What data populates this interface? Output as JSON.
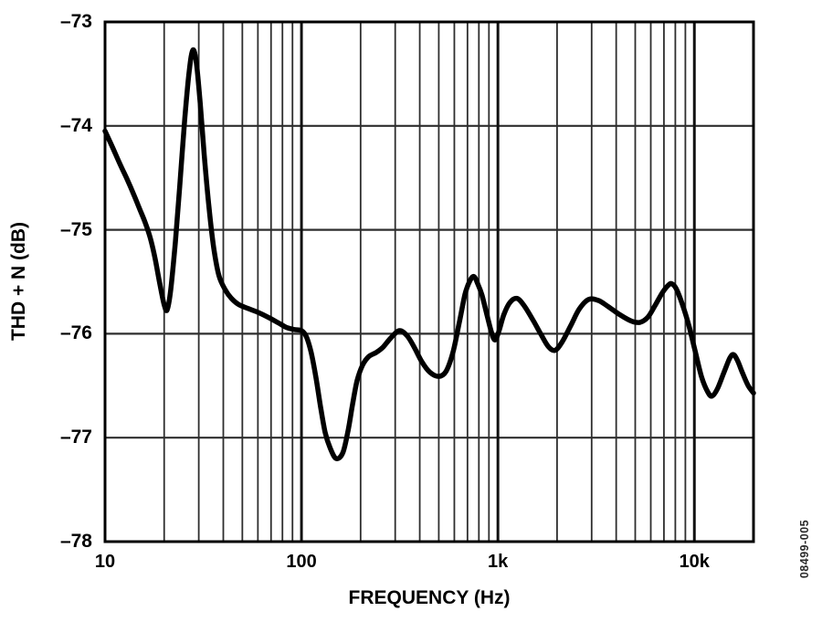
{
  "figure": {
    "note": "08499-005",
    "background": "#ffffff"
  },
  "chart_data": {
    "type": "line",
    "title": "",
    "xlabel": "FREQUENCY (Hz)",
    "ylabel": "THD + N (dB)",
    "x_scale": "log",
    "xlim": [
      10,
      20000
    ],
    "ylim": [
      -78,
      -73
    ],
    "grid": true,
    "legend": "none",
    "colors": {
      "curve": "#000000",
      "grid_minor": "#2e2e2e",
      "grid_major": "#111111",
      "frame": "#000000",
      "text": "#000000"
    },
    "x_ticks": [
      {
        "value": 10,
        "label": "10"
      },
      {
        "value": 100,
        "label": "100"
      },
      {
        "value": 1000,
        "label": "1k"
      },
      {
        "value": 10000,
        "label": "10k"
      }
    ],
    "y_ticks": [
      {
        "value": -73,
        "label": "–73"
      },
      {
        "value": -74,
        "label": "–74"
      },
      {
        "value": -75,
        "label": "–75"
      },
      {
        "value": -76,
        "label": "–76"
      },
      {
        "value": -77,
        "label": "–77"
      },
      {
        "value": -78,
        "label": "–78"
      }
    ],
    "series": [
      {
        "name": "THD + N",
        "points": [
          [
            10,
            -74.05
          ],
          [
            11,
            -74.22
          ],
          [
            12,
            -74.38
          ],
          [
            13,
            -74.52
          ],
          [
            14,
            -74.66
          ],
          [
            15,
            -74.8
          ],
          [
            16,
            -74.93
          ],
          [
            17,
            -75.08
          ],
          [
            18,
            -75.28
          ],
          [
            19,
            -75.52
          ],
          [
            20,
            -75.72
          ],
          [
            20.7,
            -75.77
          ],
          [
            21.6,
            -75.58
          ],
          [
            22.8,
            -75.12
          ],
          [
            24,
            -74.58
          ],
          [
            25.5,
            -73.92
          ],
          [
            26.8,
            -73.48
          ],
          [
            28,
            -73.27
          ],
          [
            29.2,
            -73.4
          ],
          [
            30.5,
            -73.78
          ],
          [
            32,
            -74.28
          ],
          [
            33.8,
            -74.78
          ],
          [
            35.8,
            -75.18
          ],
          [
            38,
            -75.44
          ],
          [
            41,
            -75.58
          ],
          [
            44,
            -75.66
          ],
          [
            48,
            -75.72
          ],
          [
            54,
            -75.76
          ],
          [
            61,
            -75.8
          ],
          [
            69,
            -75.85
          ],
          [
            77,
            -75.9
          ],
          [
            84,
            -75.94
          ],
          [
            92,
            -75.96
          ],
          [
            100,
            -75.97
          ],
          [
            106,
            -76.03
          ],
          [
            112,
            -76.18
          ],
          [
            118,
            -76.4
          ],
          [
            125,
            -76.7
          ],
          [
            132,
            -76.95
          ],
          [
            140,
            -77.1
          ],
          [
            150,
            -77.2
          ],
          [
            162,
            -77.15
          ],
          [
            172,
            -76.95
          ],
          [
            182,
            -76.68
          ],
          [
            192,
            -76.45
          ],
          [
            205,
            -76.3
          ],
          [
            220,
            -76.22
          ],
          [
            240,
            -76.18
          ],
          [
            260,
            -76.13
          ],
          [
            285,
            -76.04
          ],
          [
            315,
            -75.97
          ],
          [
            345,
            -76.02
          ],
          [
            375,
            -76.13
          ],
          [
            410,
            -76.27
          ],
          [
            450,
            -76.37
          ],
          [
            500,
            -76.41
          ],
          [
            545,
            -76.36
          ],
          [
            590,
            -76.18
          ],
          [
            635,
            -75.9
          ],
          [
            680,
            -75.62
          ],
          [
            720,
            -75.49
          ],
          [
            755,
            -75.45
          ],
          [
            790,
            -75.52
          ],
          [
            830,
            -75.63
          ],
          [
            880,
            -75.82
          ],
          [
            925,
            -75.98
          ],
          [
            965,
            -76.06
          ],
          [
            1010,
            -75.98
          ],
          [
            1070,
            -75.82
          ],
          [
            1150,
            -75.7
          ],
          [
            1250,
            -75.66
          ],
          [
            1360,
            -75.73
          ],
          [
            1500,
            -75.86
          ],
          [
            1650,
            -76.0
          ],
          [
            1800,
            -76.12
          ],
          [
            1950,
            -76.16
          ],
          [
            2120,
            -76.08
          ],
          [
            2350,
            -75.92
          ],
          [
            2600,
            -75.76
          ],
          [
            2900,
            -75.67
          ],
          [
            3250,
            -75.68
          ],
          [
            3650,
            -75.74
          ],
          [
            4200,
            -75.82
          ],
          [
            4800,
            -75.88
          ],
          [
            5300,
            -75.89
          ],
          [
            5800,
            -75.84
          ],
          [
            6300,
            -75.73
          ],
          [
            6900,
            -75.6
          ],
          [
            7400,
            -75.53
          ],
          [
            7700,
            -75.52
          ],
          [
            8100,
            -75.57
          ],
          [
            8700,
            -75.72
          ],
          [
            9400,
            -75.93
          ],
          [
            10100,
            -76.17
          ],
          [
            10900,
            -76.42
          ],
          [
            11700,
            -76.56
          ],
          [
            12300,
            -76.6
          ],
          [
            13100,
            -76.53
          ],
          [
            14100,
            -76.38
          ],
          [
            15100,
            -76.24
          ],
          [
            15800,
            -76.2
          ],
          [
            16600,
            -76.26
          ],
          [
            17600,
            -76.38
          ],
          [
            18800,
            -76.5
          ],
          [
            20000,
            -76.57
          ]
        ]
      }
    ]
  }
}
